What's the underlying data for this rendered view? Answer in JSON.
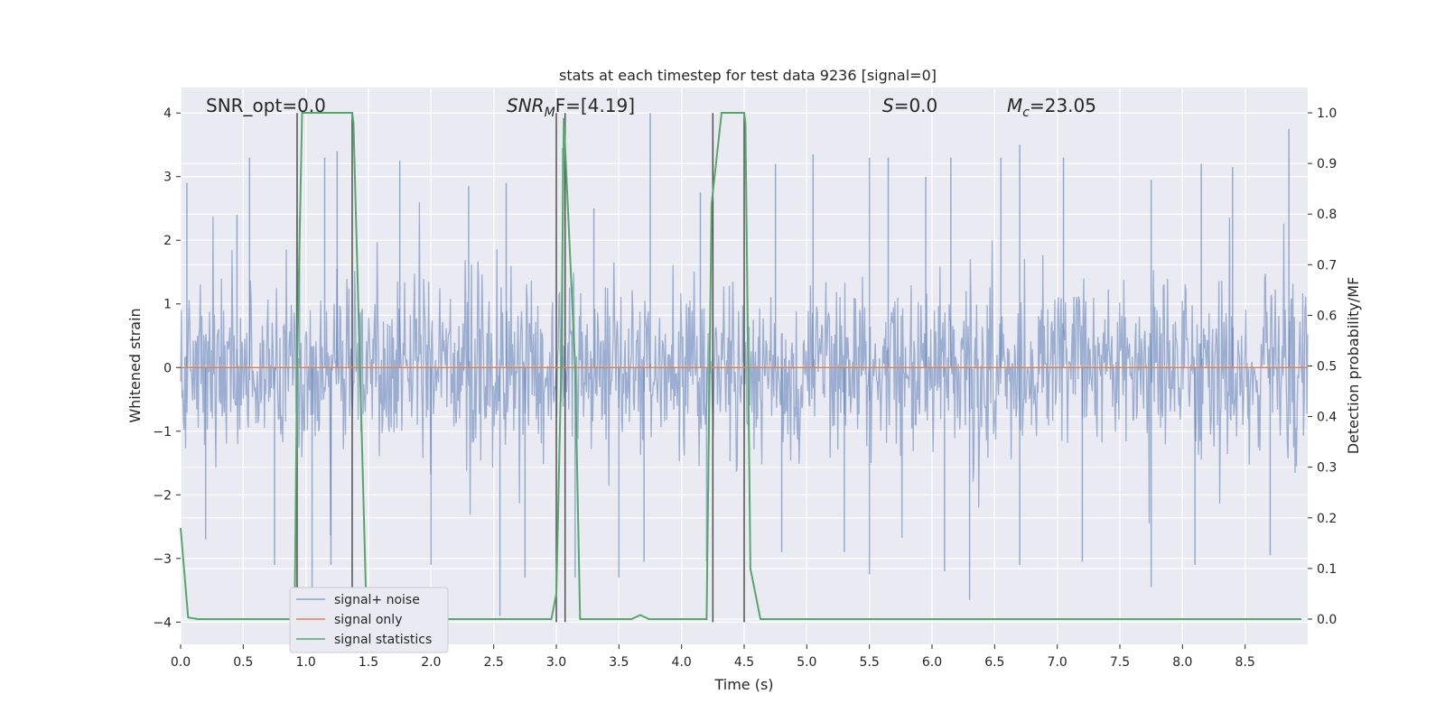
{
  "chart_data": {
    "type": "line",
    "title": "stats at each timestep for test data 9236 [signal=0]",
    "xlabel": "Time (s)",
    "ylabel_left": "Whitened strain",
    "ylabel_right": "Detection probability/MF",
    "xlim": [
      0,
      9.0
    ],
    "ylim_left": [
      -4.35,
      4.4
    ],
    "ylim_right": [
      -0.05,
      1.05
    ],
    "x_ticks": [
      "0.0",
      "0.5",
      "1.0",
      "1.5",
      "2.0",
      "2.5",
      "3.0",
      "3.5",
      "4.0",
      "4.5",
      "5.0",
      "5.5",
      "6.0",
      "6.5",
      "7.0",
      "7.5",
      "8.0",
      "8.5"
    ],
    "x_tick_values": [
      0,
      0.5,
      1,
      1.5,
      2,
      2.5,
      3,
      3.5,
      4,
      4.5,
      5,
      5.5,
      6,
      6.5,
      7,
      7.5,
      8,
      8.5
    ],
    "y_left_ticks": [
      "−4",
      "−3",
      "−2",
      "−1",
      "0",
      "1",
      "2",
      "3",
      "4"
    ],
    "y_left_tick_values": [
      -4,
      -3,
      -2,
      -1,
      0,
      1,
      2,
      3,
      4
    ],
    "y_right_ticks": [
      "0.0",
      "0.1",
      "0.2",
      "0.3",
      "0.4",
      "0.5",
      "0.6",
      "0.7",
      "0.8",
      "0.9",
      "1.0"
    ],
    "y_right_tick_values": [
      0,
      0.1,
      0.2,
      0.3,
      0.4,
      0.5,
      0.6,
      0.7,
      0.8,
      0.9,
      1.0
    ],
    "grid": true,
    "legend_placement": "lower-left",
    "annotations": {
      "snr_opt": "SNR_opt=0.0",
      "snr_mf_base": "SNR",
      "snr_mf_sub": "M",
      "snr_mf_rest": "F=[4.19]",
      "s_label_base": "S",
      "s_label_rest": "=0.0",
      "mc_base": "M",
      "mc_sub": "c",
      "mc_rest": "=23.05"
    },
    "series": [
      {
        "name": "signal+ noise",
        "axis": "left",
        "color": "#4c72b0",
        "style": "noisy strain, bulk amplitude about ±1.7 with spikes up to about ±4",
        "envelope_upper_points": [
          [
            0.05,
            2.9
          ],
          [
            0.45,
            2.4
          ],
          [
            0.55,
            3.3
          ],
          [
            0.95,
            2.35
          ],
          [
            1.15,
            3.3
          ],
          [
            1.25,
            3.4
          ],
          [
            1.75,
            3.25
          ],
          [
            2.3,
            2.85
          ],
          [
            2.6,
            2.9
          ],
          [
            3.05,
            3.45
          ],
          [
            3.3,
            2.5
          ],
          [
            3.75,
            4.0
          ],
          [
            4.15,
            2.75
          ],
          [
            4.25,
            3.55
          ],
          [
            4.75,
            3.2
          ],
          [
            5.05,
            3.35
          ],
          [
            5.5,
            3.3
          ],
          [
            5.65,
            3.3
          ],
          [
            5.95,
            3.0
          ],
          [
            6.15,
            3.3
          ],
          [
            6.55,
            3.3
          ],
          [
            6.7,
            3.5
          ],
          [
            7.05,
            3.3
          ],
          [
            7.75,
            2.95
          ],
          [
            8.15,
            3.2
          ],
          [
            8.4,
            3.15
          ],
          [
            8.85,
            3.75
          ]
        ],
        "envelope_lower_points": [
          [
            0.2,
            -2.7
          ],
          [
            0.75,
            -3.1
          ],
          [
            1.05,
            -3.7
          ],
          [
            1.2,
            -3.1
          ],
          [
            2.0,
            -3.1
          ],
          [
            2.55,
            -3.9
          ],
          [
            2.75,
            -3.3
          ],
          [
            3.15,
            -3.3
          ],
          [
            3.5,
            -3.3
          ],
          [
            3.7,
            -3.05
          ],
          [
            4.2,
            -3.05
          ],
          [
            4.8,
            -2.9
          ],
          [
            5.3,
            -2.9
          ],
          [
            5.5,
            -3.25
          ],
          [
            6.1,
            -3.2
          ],
          [
            6.3,
            -3.65
          ],
          [
            6.7,
            -3.1
          ],
          [
            7.2,
            -3.05
          ],
          [
            7.75,
            -3.45
          ],
          [
            8.1,
            -3.1
          ],
          [
            8.7,
            -2.95
          ]
        ]
      },
      {
        "name": "signal only",
        "axis": "left",
        "color": "#dd8452",
        "x": [
          0.0,
          9.0
        ],
        "y": [
          0.0,
          0.0
        ]
      },
      {
        "name": "signal statistics",
        "axis": "right",
        "color": "#55a868",
        "x": [
          0.0,
          0.06,
          0.14,
          0.91,
          0.93,
          0.97,
          1.37,
          1.38,
          1.48,
          1.49,
          2.96,
          3.0,
          3.04,
          3.06,
          3.15,
          3.19,
          3.6,
          3.67,
          3.74,
          3.85,
          4.2,
          4.24,
          4.32,
          4.5,
          4.51,
          4.55,
          4.63,
          8.95
        ],
        "y": [
          0.18,
          0.003,
          0.0,
          0.0,
          0.5,
          1.0,
          1.0,
          0.98,
          0.05,
          0.0,
          0.0,
          0.05,
          0.5,
          0.99,
          0.5,
          0.0,
          0.0,
          0.008,
          0.0,
          0.0,
          0.0,
          0.82,
          1.0,
          1.0,
          0.98,
          0.1,
          0.0,
          0.0
        ]
      }
    ],
    "vertical_markers_x": [
      0.93,
      1.37,
      3.0,
      3.07,
      4.25,
      4.5
    ]
  }
}
